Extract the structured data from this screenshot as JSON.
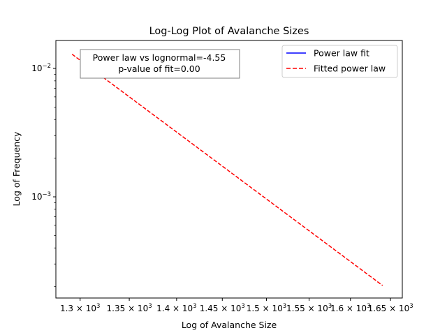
{
  "chart_data": {
    "type": "line",
    "title": "Log-Log Plot of Avalanche Sizes",
    "xlabel": "Log of Avalanche Size",
    "ylabel": "Log of Frequency",
    "xscale": "log",
    "yscale": "log",
    "xlim": [
      1276,
      1665
    ],
    "ylim": [
      0.000163,
      0.0165
    ],
    "grid": false,
    "x_ticks": [
      {
        "value": 1300,
        "label": "1.3 × 10",
        "exp": "3"
      },
      {
        "value": 1350,
        "label": "1.35 × 10",
        "exp": "3"
      },
      {
        "value": 1400,
        "label": "1.4 × 10",
        "exp": "3"
      },
      {
        "value": 1450,
        "label": "1.45 × 10",
        "exp": "3"
      },
      {
        "value": 1500,
        "label": "1.5 × 10",
        "exp": "3"
      },
      {
        "value": 1550,
        "label": "1.55 × 10",
        "exp": "3"
      },
      {
        "value": 1600,
        "label": "1.6 × 10",
        "exp": "3"
      },
      {
        "value": 1650,
        "label": "1.65 × 10",
        "exp": "3"
      }
    ],
    "y_ticks": [
      {
        "value": 0.01,
        "label": "10",
        "exp": "−2"
      },
      {
        "value": 0.001,
        "label": "10",
        "exp": "−3"
      }
    ],
    "series": [
      {
        "name": "Power law fit",
        "color": "#0000ff",
        "style": "solid",
        "x": [],
        "y": []
      },
      {
        "name": "Fitted power law",
        "color": "#ff0000",
        "style": "dashed",
        "x": [
          1292,
          1640
        ],
        "y": [
          0.0129,
          0.000204
        ]
      }
    ],
    "legend": {
      "placement": "top-right"
    },
    "annotation": {
      "lines": [
        "Power law vs lognormal=-4.55",
        "p-value of fit=0.00"
      ],
      "placement": "top-left"
    }
  }
}
